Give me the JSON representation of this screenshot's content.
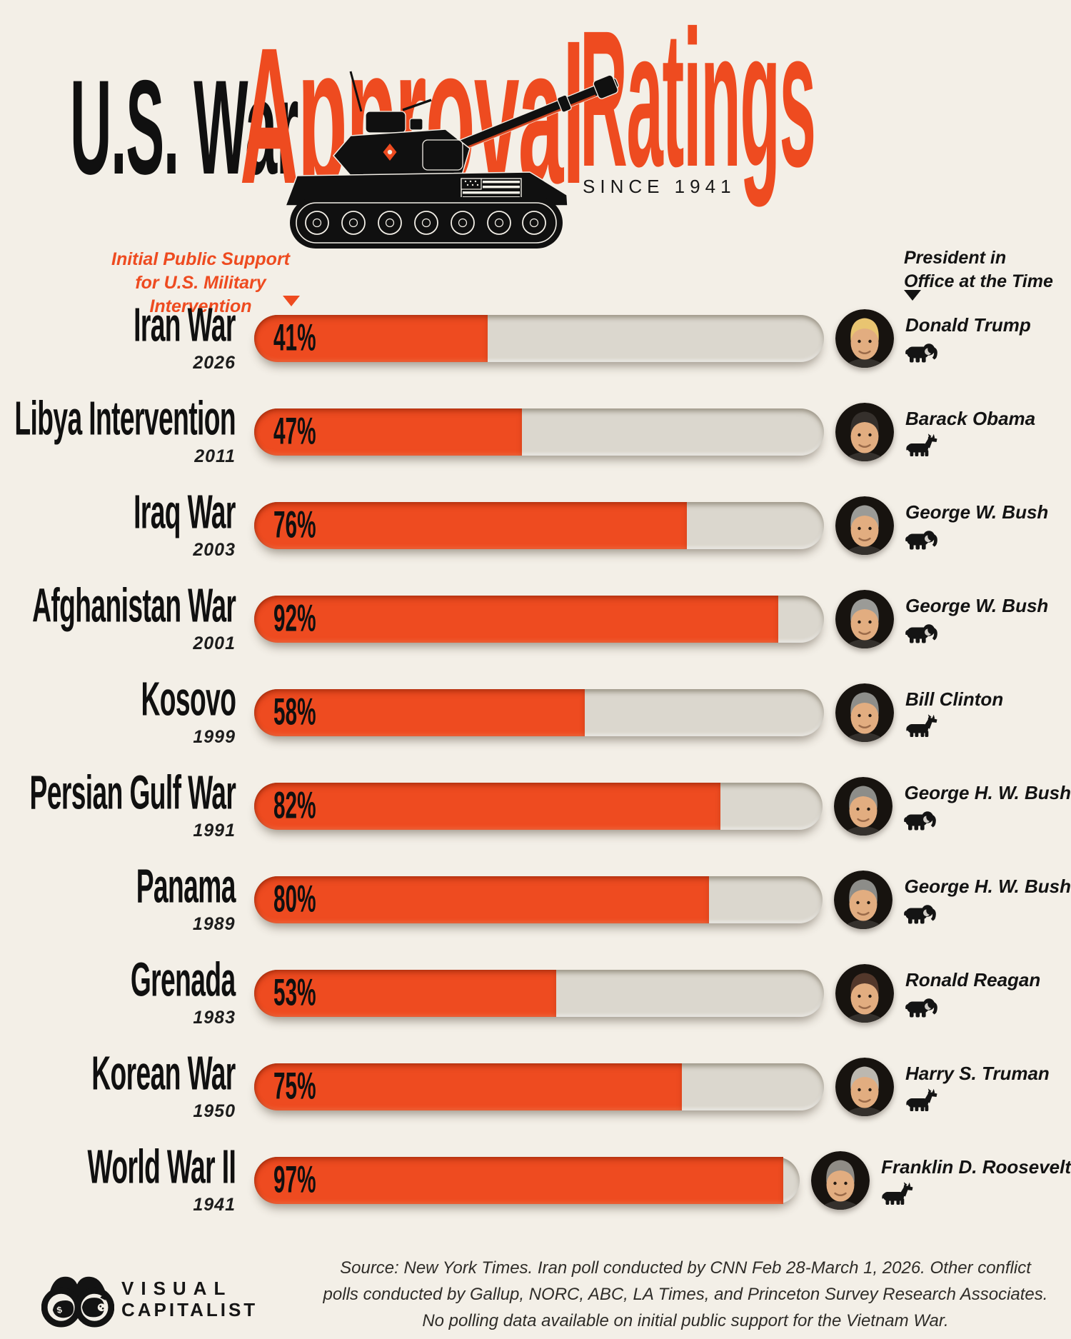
{
  "title": {
    "prefix": "U.S. War",
    "highlight_word1": "Approval",
    "highlight_word2": "Ratings",
    "subtitle": "SINCE 1941"
  },
  "column_headers": {
    "left": {
      "line1": "Initial Public Support",
      "line2": "for U.S. Military Intervention"
    },
    "right": {
      "line1": "President in",
      "line2": "Office at the Time"
    }
  },
  "chart_data": {
    "type": "bar",
    "orientation": "horizontal",
    "title": "U.S. War Approval Ratings",
    "subtitle": "SINCE 1941",
    "value_axis_label": "Initial Public Support for U.S. Military Intervention",
    "unit": "%",
    "xlim": [
      0,
      100
    ],
    "categories": [
      "Iran War",
      "Libya Intervention",
      "Iraq War",
      "Afghanistan War",
      "Kosovo",
      "Persian Gulf War",
      "Panama",
      "Grenada",
      "Korean War",
      "World War II"
    ],
    "years": [
      "2026",
      "2011",
      "2003",
      "2001",
      "1999",
      "1991",
      "1989",
      "1983",
      "1950",
      "1941"
    ],
    "values": [
      41,
      47,
      76,
      92,
      58,
      82,
      80,
      53,
      75,
      97
    ],
    "value_labels": [
      "41%",
      "47%",
      "76%",
      "92%",
      "58%",
      "82%",
      "80%",
      "53%",
      "75%",
      "97%"
    ],
    "presidents": [
      "Donald Trump",
      "Barack Obama",
      "George W. Bush",
      "George W. Bush",
      "Bill Clinton",
      "George H. W. Bush",
      "George H. W. Bush",
      "Ronald Reagan",
      "Harry S. Truman",
      "Franklin D. Roosevelt"
    ],
    "parties": [
      "Republican",
      "Democrat",
      "Republican",
      "Republican",
      "Democrat",
      "Republican",
      "Republican",
      "Republican",
      "Democrat",
      "Democrat"
    ],
    "bar_color": "#ee4b20",
    "track_color": "#dbd7ce",
    "grid": false,
    "legend": false
  },
  "portraits": {
    "hair": [
      "#e9c571",
      "#35302c",
      "#9b9b97",
      "#9b9b97",
      "#8e8e8a",
      "#8d8d89",
      "#8d8d89",
      "#53382b",
      "#bcb8b0",
      "#8f8c86"
    ]
  },
  "footer": {
    "lines": [
      "Source: New York Times. Iran poll conducted by CNN Feb 28-March 1, 2026. Other conflict",
      "polls conducted by Gallup, NORC, ABC, LA Times, and Princeton Survey Research Associates.",
      "No polling data available on initial public support for the Vietnam War."
    ]
  },
  "logo": {
    "line1": "VISUAL",
    "line2": "CAPITALIST"
  }
}
